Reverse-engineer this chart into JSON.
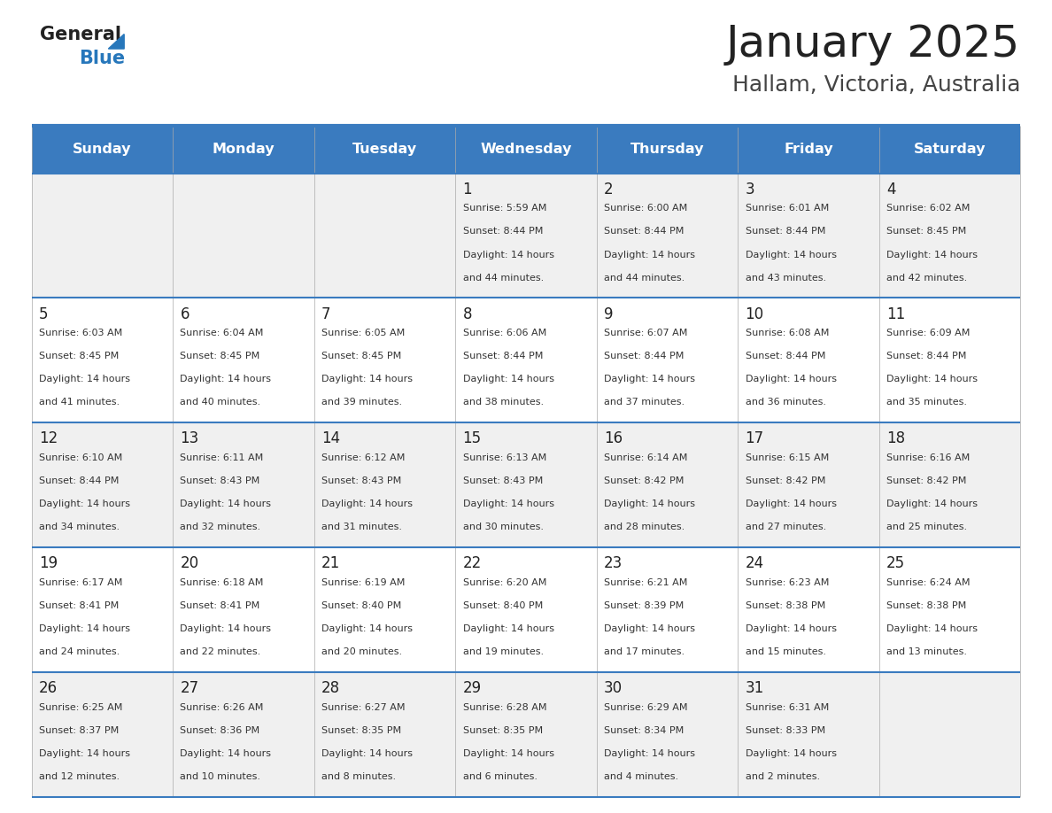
{
  "title": "January 2025",
  "subtitle": "Hallam, Victoria, Australia",
  "header_bg_color": "#3a7bbf",
  "header_text_color": "#ffffff",
  "cell_bg_even": "#f0f0f0",
  "cell_bg_odd": "#ffffff",
  "day_headers": [
    "Sunday",
    "Monday",
    "Tuesday",
    "Wednesday",
    "Thursday",
    "Friday",
    "Saturday"
  ],
  "title_color": "#222222",
  "subtitle_color": "#444444",
  "day_num_color": "#222222",
  "info_color": "#333333",
  "divider_color": "#3a7bbf",
  "vert_line_color": "#aaaaaa",
  "logo_general_color": "#222222",
  "logo_blue_color": "#2777bb",
  "weeks": [
    [
      {
        "date": "",
        "sunrise": "",
        "sunset": "",
        "hours": "",
        "minutes": ""
      },
      {
        "date": "",
        "sunrise": "",
        "sunset": "",
        "hours": "",
        "minutes": ""
      },
      {
        "date": "",
        "sunrise": "",
        "sunset": "",
        "hours": "",
        "minutes": ""
      },
      {
        "date": "1",
        "sunrise": "5:59 AM",
        "sunset": "8:44 PM",
        "hours": "14",
        "minutes": "44"
      },
      {
        "date": "2",
        "sunrise": "6:00 AM",
        "sunset": "8:44 PM",
        "hours": "14",
        "minutes": "44"
      },
      {
        "date": "3",
        "sunrise": "6:01 AM",
        "sunset": "8:44 PM",
        "hours": "14",
        "minutes": "43"
      },
      {
        "date": "4",
        "sunrise": "6:02 AM",
        "sunset": "8:45 PM",
        "hours": "14",
        "minutes": "42"
      }
    ],
    [
      {
        "date": "5",
        "sunrise": "6:03 AM",
        "sunset": "8:45 PM",
        "hours": "14",
        "minutes": "41"
      },
      {
        "date": "6",
        "sunrise": "6:04 AM",
        "sunset": "8:45 PM",
        "hours": "14",
        "minutes": "40"
      },
      {
        "date": "7",
        "sunrise": "6:05 AM",
        "sunset": "8:45 PM",
        "hours": "14",
        "minutes": "39"
      },
      {
        "date": "8",
        "sunrise": "6:06 AM",
        "sunset": "8:44 PM",
        "hours": "14",
        "minutes": "38"
      },
      {
        "date": "9",
        "sunrise": "6:07 AM",
        "sunset": "8:44 PM",
        "hours": "14",
        "minutes": "37"
      },
      {
        "date": "10",
        "sunrise": "6:08 AM",
        "sunset": "8:44 PM",
        "hours": "14",
        "minutes": "36"
      },
      {
        "date": "11",
        "sunrise": "6:09 AM",
        "sunset": "8:44 PM",
        "hours": "14",
        "minutes": "35"
      }
    ],
    [
      {
        "date": "12",
        "sunrise": "6:10 AM",
        "sunset": "8:44 PM",
        "hours": "14",
        "minutes": "34"
      },
      {
        "date": "13",
        "sunrise": "6:11 AM",
        "sunset": "8:43 PM",
        "hours": "14",
        "minutes": "32"
      },
      {
        "date": "14",
        "sunrise": "6:12 AM",
        "sunset": "8:43 PM",
        "hours": "14",
        "minutes": "31"
      },
      {
        "date": "15",
        "sunrise": "6:13 AM",
        "sunset": "8:43 PM",
        "hours": "14",
        "minutes": "30"
      },
      {
        "date": "16",
        "sunrise": "6:14 AM",
        "sunset": "8:42 PM",
        "hours": "14",
        "minutes": "28"
      },
      {
        "date": "17",
        "sunrise": "6:15 AM",
        "sunset": "8:42 PM",
        "hours": "14",
        "minutes": "27"
      },
      {
        "date": "18",
        "sunrise": "6:16 AM",
        "sunset": "8:42 PM",
        "hours": "14",
        "minutes": "25"
      }
    ],
    [
      {
        "date": "19",
        "sunrise": "6:17 AM",
        "sunset": "8:41 PM",
        "hours": "14",
        "minutes": "24"
      },
      {
        "date": "20",
        "sunrise": "6:18 AM",
        "sunset": "8:41 PM",
        "hours": "14",
        "minutes": "22"
      },
      {
        "date": "21",
        "sunrise": "6:19 AM",
        "sunset": "8:40 PM",
        "hours": "14",
        "minutes": "20"
      },
      {
        "date": "22",
        "sunrise": "6:20 AM",
        "sunset": "8:40 PM",
        "hours": "14",
        "minutes": "19"
      },
      {
        "date": "23",
        "sunrise": "6:21 AM",
        "sunset": "8:39 PM",
        "hours": "14",
        "minutes": "17"
      },
      {
        "date": "24",
        "sunrise": "6:23 AM",
        "sunset": "8:38 PM",
        "hours": "14",
        "minutes": "15"
      },
      {
        "date": "25",
        "sunrise": "6:24 AM",
        "sunset": "8:38 PM",
        "hours": "14",
        "minutes": "13"
      }
    ],
    [
      {
        "date": "26",
        "sunrise": "6:25 AM",
        "sunset": "8:37 PM",
        "hours": "14",
        "minutes": "12"
      },
      {
        "date": "27",
        "sunrise": "6:26 AM",
        "sunset": "8:36 PM",
        "hours": "14",
        "minutes": "10"
      },
      {
        "date": "28",
        "sunrise": "6:27 AM",
        "sunset": "8:35 PM",
        "hours": "14",
        "minutes": "8"
      },
      {
        "date": "29",
        "sunrise": "6:28 AM",
        "sunset": "8:35 PM",
        "hours": "14",
        "minutes": "6"
      },
      {
        "date": "30",
        "sunrise": "6:29 AM",
        "sunset": "8:34 PM",
        "hours": "14",
        "minutes": "4"
      },
      {
        "date": "31",
        "sunrise": "6:31 AM",
        "sunset": "8:33 PM",
        "hours": "14",
        "minutes": "2"
      },
      {
        "date": "",
        "sunrise": "",
        "sunset": "",
        "hours": "",
        "minutes": ""
      }
    ]
  ]
}
